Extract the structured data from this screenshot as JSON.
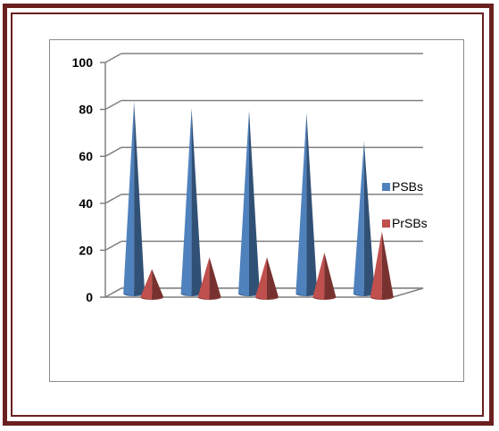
{
  "chart_data": {
    "type": "bar",
    "style": "3d-cone",
    "categories": [
      "",
      "",
      "",
      "",
      ""
    ],
    "series": [
      {
        "name": "PSBs",
        "values": [
          82,
          79,
          78,
          77,
          65
        ],
        "color": "#4f81bd"
      },
      {
        "name": "PrSBs",
        "values": [
          12,
          17,
          17,
          19,
          28
        ],
        "color": "#c0504d"
      }
    ],
    "ylim": [
      0,
      100
    ],
    "yticks": [
      "0",
      "20",
      "40",
      "60",
      "80",
      "100"
    ],
    "grid": true,
    "legend": "right"
  },
  "colors": {
    "frame": "#6b1f1f",
    "gridline": "#808080"
  }
}
